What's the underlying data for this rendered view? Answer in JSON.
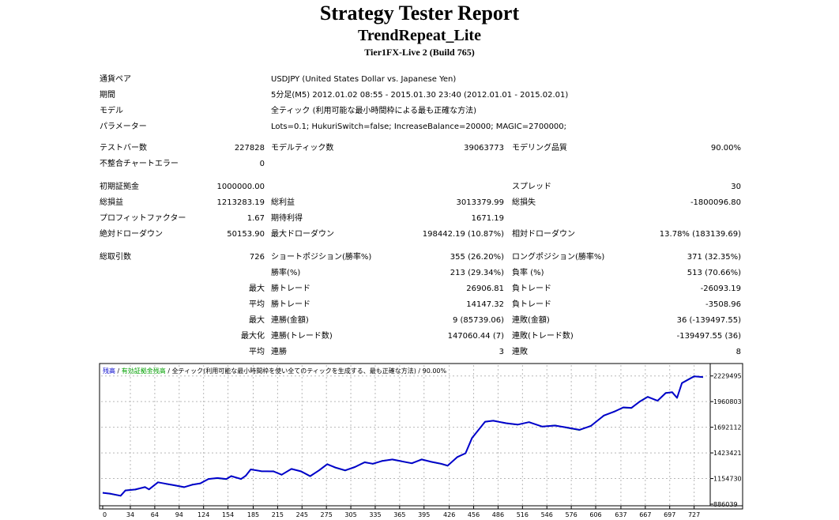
{
  "report": {
    "title": "Strategy Tester Report",
    "ea_name": "TrendRepeat_Lite",
    "server": "Tier1FX-Live 2 (Build 765)"
  },
  "settings": {
    "symbol_label": "通貨ペア",
    "symbol_value": "USDJPY (United States Dollar vs. Japanese Yen)",
    "period_label": "期間",
    "period_value": "5分足(M5) 2012.01.02 08:55 - 2015.01.30 23:40 (2012.01.01 - 2015.02.01)",
    "model_label": "モデル",
    "model_value": "全ティック (利用可能な最小時間枠による最も正確な方法)",
    "params_label": "パラメーター",
    "params_value": "Lots=0.1; HukuriSwitch=false; IncreaseBalance=20000; MAGIC=2700000;"
  },
  "stats": {
    "bars_label": "テストバー数",
    "bars_value": "227828",
    "ticks_label": "モデルティック数",
    "ticks_value": "39063773",
    "quality_label": "モデリング品質",
    "quality_value": "90.00%",
    "mismatch_label": "不整合チャートエラー",
    "mismatch_value": "0",
    "deposit_label": "初期証拠金",
    "deposit_value": "1000000.00",
    "spread_label": "スプレッド",
    "spread_value": "30",
    "net_label": "総損益",
    "net_value": "1213283.19",
    "gross_profit_label": "総利益",
    "gross_profit_value": "3013379.99",
    "gross_loss_label": "総損失",
    "gross_loss_value": "-1800096.80",
    "pf_label": "プロフィットファクター",
    "pf_value": "1.67",
    "expected_label": "期待利得",
    "expected_value": "1671.19",
    "abs_dd_label": "絶対ドローダウン",
    "abs_dd_value": "50153.90",
    "max_dd_label": "最大ドローダウン",
    "max_dd_value": "198442.19 (10.87%)",
    "rel_dd_label": "相対ドローダウン",
    "rel_dd_value": "13.78% (183139.69)",
    "trades_label": "総取引数",
    "trades_value": "726",
    "short_label": "ショートポジション(勝率%)",
    "short_value": "355 (26.20%)",
    "long_label": "ロングポジション(勝率%)",
    "long_value": "371 (32.35%)",
    "win_label": "勝率(%)",
    "win_value": "213 (29.34%)",
    "loss_label": "負率 (%)",
    "loss_value": "513 (70.66%)",
    "max_label": "最大",
    "max_win_label": "勝トレード",
    "max_win_value": "26906.81",
    "max_loss_label": "負トレード",
    "max_loss_value": "-26093.19",
    "avg_label": "平均",
    "avg_win_label": "勝トレード",
    "avg_win_value": "14147.32",
    "avg_loss_label": "負トレード",
    "avg_loss_value": "-3508.96",
    "max2_label": "最大",
    "consec_wins_money_label": "連勝(金額)",
    "consec_wins_money_value": "9 (85739.06)",
    "consec_losses_money_label": "連敗(金額)",
    "consec_losses_money_value": "36 (-139497.55)",
    "maximal_label": "最大化",
    "consec_profit_label": "連勝(トレード数)",
    "consec_profit_value": "147060.44 (7)",
    "consec_loss_label": "連敗(トレード数)",
    "consec_loss_value": "-139497.55 (36)",
    "avg2_label": "平均",
    "avg_consec_wins_label": "連勝",
    "avg_consec_wins_value": "3",
    "avg_consec_losses_label": "連敗",
    "avg_consec_losses_value": "8"
  },
  "chart_data": {
    "type": "line",
    "legend_balance": "残高",
    "legend_sep": " / ",
    "legend_equity": "有効証拠金残高",
    "legend_rest": " / 全ティック(利用可能な最小時間枠を使い全てのティックを生成する、最も正確な方法) / 90.00%",
    "colors": {
      "balance": "#0000cc",
      "equity": "#00a000",
      "legend_text": "#000000"
    },
    "xlim": [
      0,
      740
    ],
    "ylim": [
      886039,
      2310000
    ],
    "xticks": [
      0,
      34,
      64,
      94,
      124,
      154,
      185,
      215,
      245,
      275,
      305,
      335,
      365,
      395,
      426,
      456,
      486,
      516,
      546,
      576,
      606,
      637,
      667,
      697,
      727
    ],
    "yticks": [
      886039,
      1154730,
      1423421,
      1692112,
      1960803,
      2229495
    ],
    "grid": true,
    "series": [
      {
        "name": "残高",
        "x": [
          0,
          10,
          22,
          28,
          40,
          52,
          57,
          68,
          78,
          88,
          100,
          110,
          120,
          130,
          141,
          152,
          158,
          170,
          176,
          182,
          195,
          210,
          220,
          232,
          244,
          255,
          266,
          276,
          286,
          298,
          310,
          322,
          332,
          344,
          356,
          368,
          380,
          392,
          404,
          416,
          424,
          436,
          446,
          454,
          470,
          480,
          496,
          510,
          524,
          540,
          556,
          570,
          586,
          600,
          616,
          630,
          640,
          650,
          660,
          670,
          682,
          692,
          700,
          706,
          712,
          727,
          738
        ],
        "y": [
          1005000,
          995000,
          975000,
          1030000,
          1040000,
          1065000,
          1042000,
          1115000,
          1100000,
          1085000,
          1065000,
          1090000,
          1105000,
          1150000,
          1160000,
          1150000,
          1180000,
          1150000,
          1185000,
          1250000,
          1232000,
          1230000,
          1195000,
          1255000,
          1230000,
          1180000,
          1240000,
          1305000,
          1270000,
          1240000,
          1275000,
          1325000,
          1310000,
          1340000,
          1355000,
          1335000,
          1315000,
          1355000,
          1330000,
          1310000,
          1290000,
          1380000,
          1420000,
          1580000,
          1750000,
          1760000,
          1735000,
          1720000,
          1745000,
          1700000,
          1710000,
          1690000,
          1665000,
          1705000,
          1815000,
          1860000,
          1900000,
          1895000,
          1960000,
          2010000,
          1970000,
          2050000,
          2060000,
          2000000,
          2155000,
          2225000,
          2218000
        ]
      },
      {
        "name": "有効証拠金残高",
        "x": [
          0,
          10,
          22,
          28,
          40,
          52,
          57,
          68,
          78,
          88,
          100,
          110,
          120,
          130,
          141,
          152,
          158,
          170,
          176,
          182,
          195,
          210,
          220,
          232,
          244,
          255,
          266,
          276,
          286,
          298,
          310,
          322,
          332,
          344,
          356,
          368,
          380,
          392,
          404,
          416,
          424,
          436,
          446,
          454,
          470,
          480,
          496,
          510,
          524,
          540,
          556,
          570,
          586,
          600,
          616,
          630,
          640,
          650,
          660,
          670,
          682,
          692,
          700,
          706,
          712,
          727,
          738
        ],
        "y": [
          1008000,
          992000,
          972000,
          1033000,
          1037000,
          1068000,
          1039000,
          1118000,
          1097000,
          1082000,
          1062000,
          1093000,
          1102000,
          1153000,
          1157000,
          1147000,
          1183000,
          1147000,
          1188000,
          1253000,
          1229000,
          1233000,
          1192000,
          1258000,
          1227000,
          1177000,
          1243000,
          1308000,
          1267000,
          1237000,
          1278000,
          1328000,
          1307000,
          1343000,
          1352000,
          1332000,
          1312000,
          1358000,
          1327000,
          1307000,
          1287000,
          1383000,
          1417000,
          1583000,
          1747000,
          1763000,
          1732000,
          1717000,
          1748000,
          1697000,
          1713000,
          1687000,
          1662000,
          1708000,
          1812000,
          1863000,
          1897000,
          1892000,
          1963000,
          2013000,
          1967000,
          2053000,
          2057000,
          1997000,
          2158000,
          2228000,
          2215000
        ]
      }
    ]
  }
}
